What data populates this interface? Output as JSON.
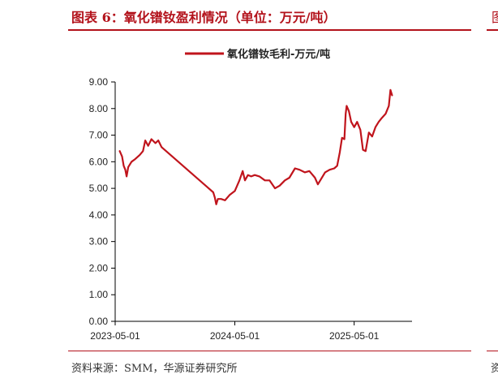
{
  "figure": {
    "title": "图表 6：氧化镨钕盈利情况（单位：万元/吨）",
    "source": "资料来源：SMM，华源证券研究所",
    "edge_title_fragment": "图",
    "edge_source_fragment": "资"
  },
  "colors": {
    "brand_red": "#b3121b",
    "series_red": "#c0141c"
  },
  "chart_data": {
    "type": "line",
    "title": "",
    "xlabel": "",
    "ylabel": "",
    "ylim": [
      0,
      9
    ],
    "y_ticks": [
      "0.00",
      "1.00",
      "2.00",
      "3.00",
      "4.00",
      "5.00",
      "6.00",
      "7.00",
      "8.00",
      "9.00"
    ],
    "x_range": [
      "2023-05-01",
      "2025-10-25"
    ],
    "x_ticks": [
      "2023-05-01",
      "2024-05-01",
      "2025-05-01"
    ],
    "grid": false,
    "legend_position": "top-center",
    "series": [
      {
        "name": "氧化镨钕毛利-万元/吨",
        "points": [
          [
            "2023-05-15",
            6.4
          ],
          [
            "2023-05-22",
            6.2
          ],
          [
            "2023-05-27",
            5.85
          ],
          [
            "2023-06-01",
            5.7
          ],
          [
            "2023-06-05",
            5.45
          ],
          [
            "2023-06-10",
            5.8
          ],
          [
            "2023-06-20",
            6.0
          ],
          [
            "2023-07-01",
            6.1
          ],
          [
            "2023-07-15",
            6.25
          ],
          [
            "2023-07-25",
            6.4
          ],
          [
            "2023-08-01",
            6.8
          ],
          [
            "2023-08-10",
            6.6
          ],
          [
            "2023-08-20",
            6.85
          ],
          [
            "2023-09-01",
            6.7
          ],
          [
            "2023-09-10",
            6.8
          ],
          [
            "2023-09-20",
            6.55
          ],
          [
            "2024-02-25",
            4.85
          ],
          [
            "2024-03-01",
            4.65
          ],
          [
            "2024-03-05",
            4.4
          ],
          [
            "2024-03-10",
            4.6
          ],
          [
            "2024-03-20",
            4.6
          ],
          [
            "2024-04-01",
            4.55
          ],
          [
            "2024-04-15",
            4.75
          ],
          [
            "2024-05-01",
            4.9
          ],
          [
            "2024-05-15",
            5.3
          ],
          [
            "2024-05-25",
            5.65
          ],
          [
            "2024-06-01",
            5.3
          ],
          [
            "2024-06-10",
            5.5
          ],
          [
            "2024-06-20",
            5.45
          ],
          [
            "2024-07-01",
            5.5
          ],
          [
            "2024-07-15",
            5.45
          ],
          [
            "2024-08-01",
            5.3
          ],
          [
            "2024-08-15",
            5.3
          ],
          [
            "2024-09-01",
            5.0
          ],
          [
            "2024-09-15",
            5.1
          ],
          [
            "2024-10-01",
            5.3
          ],
          [
            "2024-10-15",
            5.4
          ],
          [
            "2024-11-01",
            5.75
          ],
          [
            "2024-11-15",
            5.7
          ],
          [
            "2024-12-01",
            5.6
          ],
          [
            "2024-12-15",
            5.65
          ],
          [
            "2025-01-01",
            5.4
          ],
          [
            "2025-01-10",
            5.15
          ],
          [
            "2025-01-20",
            5.35
          ],
          [
            "2025-02-01",
            5.6
          ],
          [
            "2025-02-15",
            5.7
          ],
          [
            "2025-03-01",
            5.75
          ],
          [
            "2025-03-10",
            5.85
          ],
          [
            "2025-03-18",
            6.35
          ],
          [
            "2025-03-25",
            6.9
          ],
          [
            "2025-04-01",
            6.85
          ],
          [
            "2025-04-05",
            7.8
          ],
          [
            "2025-04-08",
            8.1
          ],
          [
            "2025-04-15",
            7.9
          ],
          [
            "2025-04-22",
            7.5
          ],
          [
            "2025-05-01",
            7.3
          ],
          [
            "2025-05-10",
            7.5
          ],
          [
            "2025-05-20",
            7.2
          ],
          [
            "2025-05-28",
            6.45
          ],
          [
            "2025-06-05",
            6.4
          ],
          [
            "2025-06-15",
            7.1
          ],
          [
            "2025-06-25",
            6.95
          ],
          [
            "2025-07-05",
            7.3
          ],
          [
            "2025-07-15",
            7.5
          ],
          [
            "2025-07-25",
            7.65
          ],
          [
            "2025-08-05",
            7.8
          ],
          [
            "2025-08-15",
            8.1
          ],
          [
            "2025-08-20",
            8.7
          ],
          [
            "2025-08-25",
            8.5
          ]
        ]
      }
    ]
  }
}
